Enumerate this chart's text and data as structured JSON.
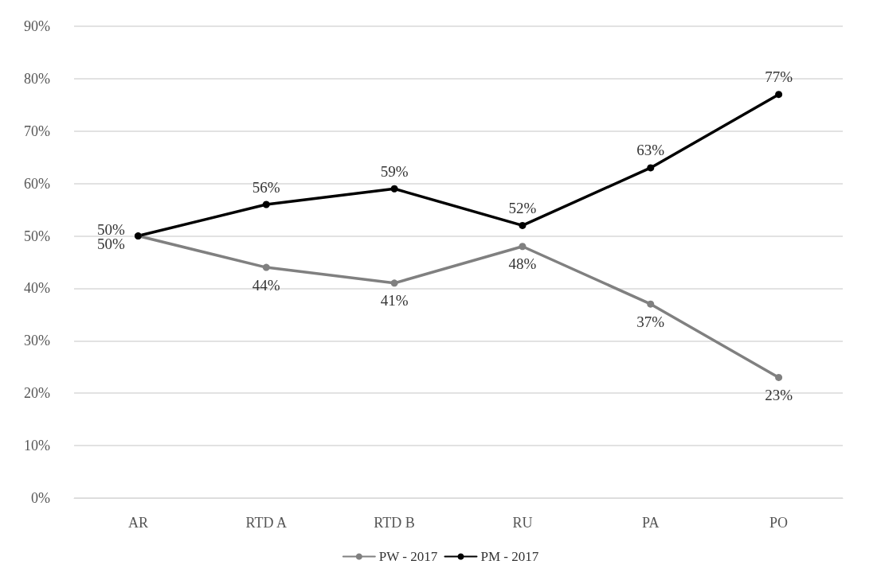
{
  "chart_data": {
    "type": "line",
    "categories": [
      "AR",
      "RTD A",
      "RTD B",
      "RU",
      "PA",
      "PO"
    ],
    "series": [
      {
        "name": "PW - 2017",
        "color": "#808080",
        "values": [
          50,
          44,
          41,
          48,
          37,
          23
        ],
        "value_labels": [
          "50%",
          "44%",
          "41%",
          "48%",
          "37%",
          "23%"
        ]
      },
      {
        "name": "PM - 2017",
        "color": "#000000",
        "values": [
          50,
          56,
          59,
          52,
          63,
          77
        ],
        "value_labels": [
          "50%",
          "56%",
          "59%",
          "52%",
          "63%",
          "77%"
        ]
      }
    ],
    "ylim": [
      0,
      90
    ],
    "yticks": [
      {
        "value": 0,
        "label": "0%"
      },
      {
        "value": 10,
        "label": "10%"
      },
      {
        "value": 20,
        "label": "20%"
      },
      {
        "value": 30,
        "label": "30%"
      },
      {
        "value": 40,
        "label": "40%"
      },
      {
        "value": 50,
        "label": "50%"
      },
      {
        "value": 60,
        "label": "60%"
      },
      {
        "value": 70,
        "label": "70%"
      },
      {
        "value": 80,
        "label": "80%"
      },
      {
        "value": 90,
        "label": "90%"
      }
    ],
    "grid": "y",
    "legend": "bottom",
    "marker": "circle",
    "line_style": "solid"
  }
}
